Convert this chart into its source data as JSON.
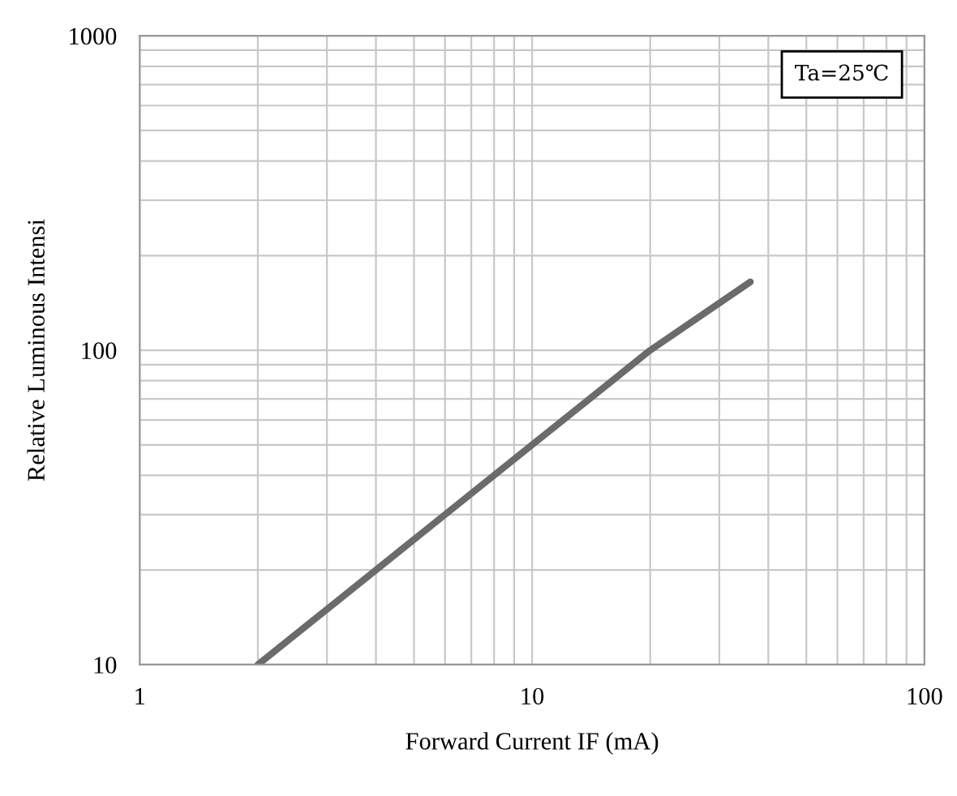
{
  "chart_data": {
    "type": "line",
    "xlabel": "Forward Current IF (mA)",
    "ylabel": "Relative Luminous Intensi",
    "annotations": [
      "Ta=25℃"
    ],
    "log": "xy",
    "xlim": [
      1,
      100
    ],
    "ylim": [
      10,
      1000
    ],
    "xticks": [
      1,
      10,
      100
    ],
    "yticks": [
      10,
      100,
      1000
    ],
    "grid": true,
    "legend": false,
    "marker": "none",
    "line_style": "solid",
    "series": [
      {
        "color": "#6b6b6b",
        "x": [
          2,
          3,
          5,
          10,
          20,
          36
        ],
        "values": [
          10,
          15,
          25,
          50,
          100,
          165
        ]
      }
    ]
  }
}
